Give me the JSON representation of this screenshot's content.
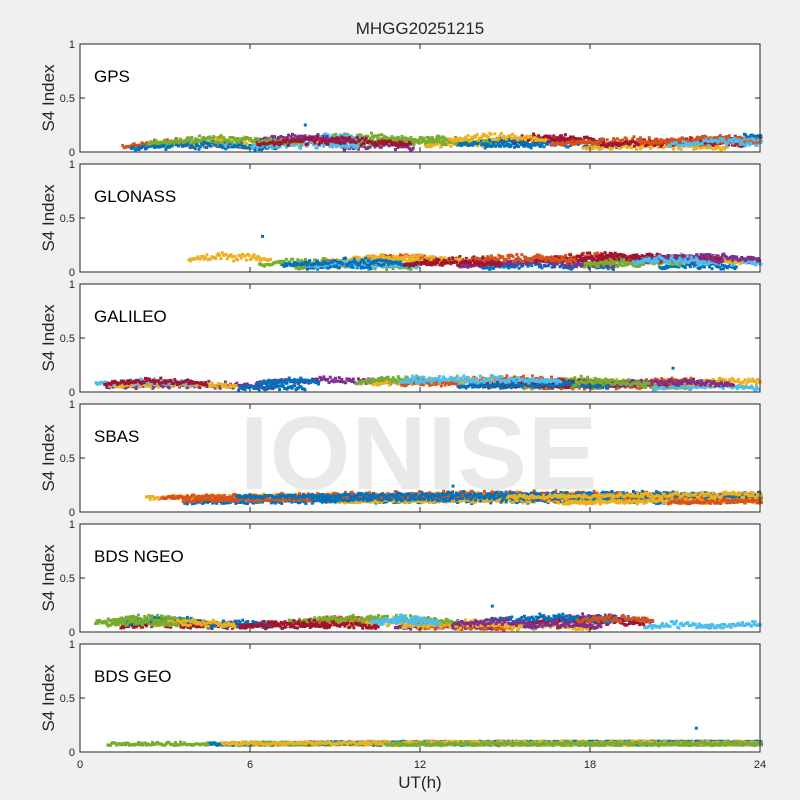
{
  "figure": {
    "title": "MHGG20251215",
    "watermark": "IONISE",
    "xlabel": "UT(h)"
  },
  "chart_data": {
    "type": "scatter",
    "title": "MHGG20251215",
    "xlabel": "UT(h)",
    "ylabel": "S4 Index",
    "xlim": [
      0,
      24
    ],
    "ylim": [
      0,
      1
    ],
    "xticks": [
      "0",
      "6",
      "12",
      "18",
      "24"
    ],
    "yticks": [
      "0",
      "0.5",
      "1"
    ],
    "grid": false,
    "legend": "none",
    "series_colors": [
      "#0072bd",
      "#d95319",
      "#edb120",
      "#7e2f8e",
      "#77ac30",
      "#4dbeee",
      "#a2142f"
    ],
    "panels": [
      {
        "label": "GPS",
        "typical_s4_range": [
          0.03,
          0.18
        ],
        "peak_s4": 0.25,
        "colors": [
          "#0072bd",
          "#d95319",
          "#edb120",
          "#7e2f8e",
          "#77ac30",
          "#4dbeee",
          "#a2142f"
        ]
      },
      {
        "label": "GLONASS",
        "typical_s4_range": [
          0.03,
          0.18
        ],
        "peak_s4": 0.33,
        "colors": [
          "#0072bd",
          "#d95319",
          "#edb120",
          "#7e2f8e",
          "#77ac30",
          "#4dbeee",
          "#a2142f"
        ]
      },
      {
        "label": "GALILEO",
        "typical_s4_range": [
          0.03,
          0.15
        ],
        "peak_s4": 0.22,
        "colors": [
          "#0072bd",
          "#d95319",
          "#edb120",
          "#7e2f8e",
          "#77ac30",
          "#4dbeee",
          "#a2142f"
        ]
      },
      {
        "label": "SBAS",
        "typical_s4_range": [
          0.08,
          0.2
        ],
        "peak_s4": 0.24,
        "colors": [
          "#0072bd",
          "#d95319",
          "#edb120"
        ]
      },
      {
        "label": "BDS NGEO",
        "typical_s4_range": [
          0.03,
          0.17
        ],
        "peak_s4": 0.24,
        "colors": [
          "#0072bd",
          "#d95319",
          "#edb120",
          "#7e2f8e",
          "#77ac30",
          "#4dbeee",
          "#a2142f"
        ]
      },
      {
        "label": "BDS GEO",
        "typical_s4_range": [
          0.07,
          0.1
        ],
        "peak_s4": 0.22,
        "peak_time_h": 21.7,
        "colors": [
          "#0072bd",
          "#edb120",
          "#77ac30"
        ]
      }
    ]
  }
}
